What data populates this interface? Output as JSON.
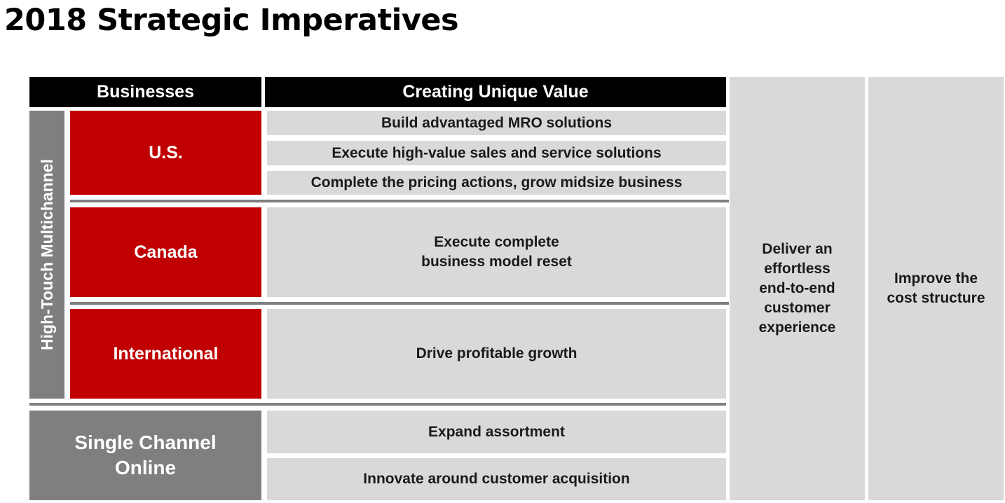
{
  "title": "2018 Strategic Imperatives",
  "headers": {
    "businesses": "Businesses",
    "creating_unique_value": "Creating Unique Value"
  },
  "segment_label": "High-Touch Multichannel",
  "businesses": {
    "us": "U.S.",
    "canada": "Canada",
    "international": "International",
    "single_channel_line1": "Single Channel",
    "single_channel_line2": "Online"
  },
  "value_items": {
    "us_1": "Build advantaged MRO solutions",
    "us_2": "Execute high-value sales and service solutions",
    "us_3": "Complete the pricing actions, grow midsize business",
    "canada_line1": "Execute complete",
    "canada_line2": "business model reset",
    "international": "Drive profitable growth",
    "online_1": "Expand assortment",
    "online_2": "Innovate around customer acquisition"
  },
  "cross_cutting": {
    "customer_experience": [
      "Deliver an",
      "effortless",
      "end-to-end",
      "customer",
      "experience"
    ],
    "cost_structure": [
      "Improve the",
      "cost structure"
    ]
  },
  "colors": {
    "header": "#000000",
    "business_red": "#c00000",
    "dark_gray": "#7f7f7f",
    "light_gray": "#d9d9d9"
  }
}
